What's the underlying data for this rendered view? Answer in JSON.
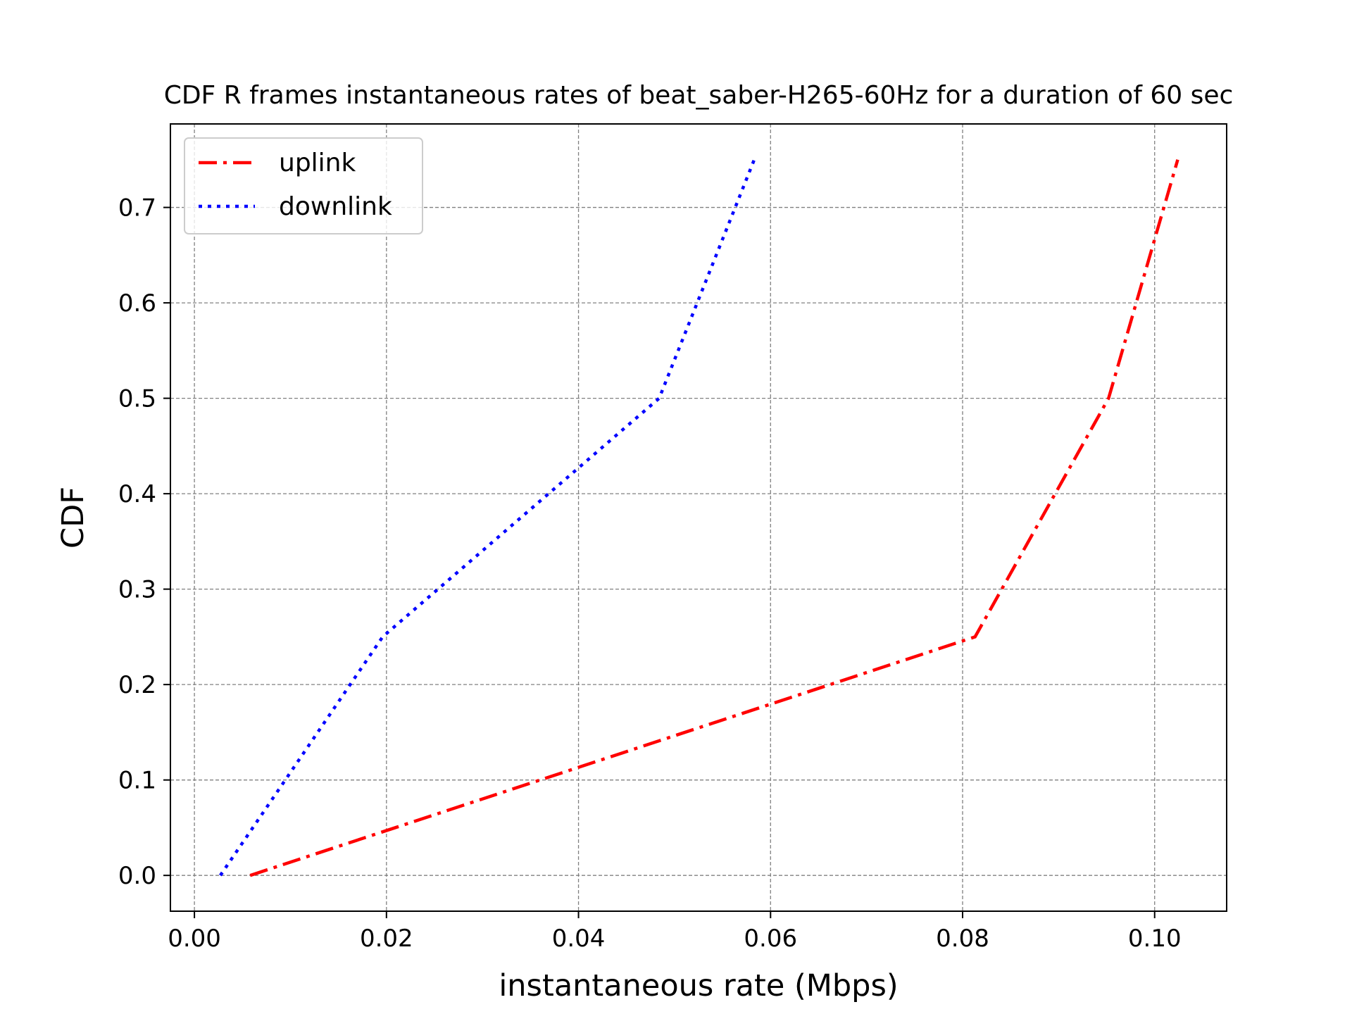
{
  "chart_data": {
    "type": "line",
    "title": "CDF R frames instantaneous rates of beat_saber-H265-60Hz for a duration of 60 sec",
    "xlabel": "instantaneous rate (Mbps)",
    "ylabel": "CDF",
    "xlim": [
      -0.0025,
      0.1075
    ],
    "ylim": [
      -0.0375,
      0.7875
    ],
    "xticks": [
      0.0,
      0.02,
      0.04,
      0.06,
      0.08,
      0.1
    ],
    "xtick_labels": [
      "0.00",
      "0.02",
      "0.04",
      "0.06",
      "0.08",
      "0.10"
    ],
    "yticks": [
      0.0,
      0.1,
      0.2,
      0.3,
      0.4,
      0.5,
      0.6,
      0.7
    ],
    "ytick_labels": [
      "0.0",
      "0.1",
      "0.2",
      "0.3",
      "0.4",
      "0.5",
      "0.6",
      "0.7"
    ],
    "grid": true,
    "legend_position": "top-left",
    "series": [
      {
        "name": "uplink",
        "color": "#ff0000",
        "style": "dashdot",
        "x": [
          0.0058,
          0.0813,
          0.0952,
          0.1024
        ],
        "y": [
          0.0,
          0.25,
          0.5,
          0.75
        ]
      },
      {
        "name": "downlink",
        "color": "#0000ff",
        "style": "dotted",
        "x": [
          0.0027,
          0.0196,
          0.0484,
          0.0583
        ],
        "y": [
          0.0,
          0.25,
          0.5,
          0.75
        ]
      }
    ]
  }
}
